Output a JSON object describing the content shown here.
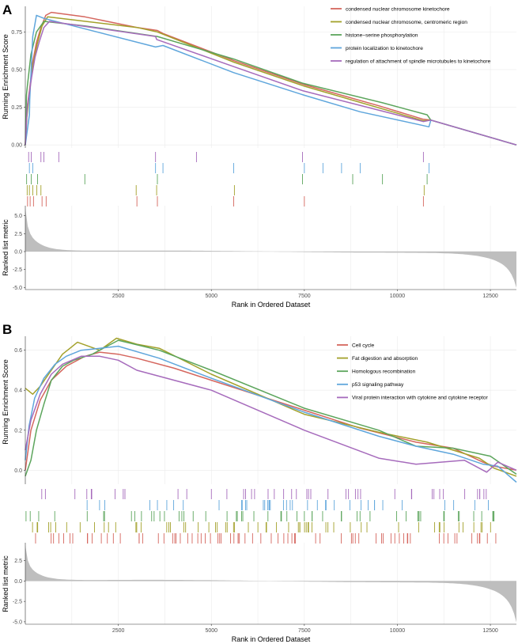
{
  "chart_data": [
    {
      "panel_label": "A",
      "type": "line",
      "ylabel": "Running Enrichment Score",
      "metric_ylabel": "Ranked list metric",
      "xlabel": "Rank in Ordered Dataset",
      "xlim": [
        0,
        13200
      ],
      "x_ticks": [
        2500,
        5000,
        7500,
        10000,
        12500
      ],
      "x_tick_labels": [
        "2500",
        "5000",
        "7500",
        "10000",
        "12500"
      ],
      "es_ylim": [
        -0.02,
        0.92
      ],
      "es_ticks": [
        0.0,
        0.25,
        0.5,
        0.75
      ],
      "es_tick_labels": [
        "0.00",
        "0.25",
        "0.50",
        "0.75"
      ],
      "metric_ylim": [
        -5.3,
        6.4
      ],
      "metric_ticks": [
        -5,
        -2.5,
        0,
        2.5,
        5
      ],
      "metric_tick_labels": [
        "-5.0",
        "-2.5",
        "0.0",
        "2.5",
        "5.0"
      ],
      "legend_position": "top-right",
      "grid": true,
      "series": [
        {
          "name": "condensed nuclear chromosome kinetochore",
          "color": "#d5665e",
          "points": [
            [
              0,
              0
            ],
            [
              30,
              0.17
            ],
            [
              60,
              0.27
            ],
            [
              110,
              0.36
            ],
            [
              200,
              0.55
            ],
            [
              300,
              0.68
            ],
            [
              420,
              0.78
            ],
            [
              550,
              0.86
            ],
            [
              700,
              0.88
            ],
            [
              1600,
              0.85
            ],
            [
              3000,
              0.78
            ],
            [
              3550,
              0.76
            ],
            [
              3700,
              0.74
            ],
            [
              5600,
              0.56
            ],
            [
              7500,
              0.4
            ],
            [
              9500,
              0.26
            ],
            [
              10700,
              0.17
            ],
            [
              10900,
              0.165
            ],
            [
              13200,
              0
            ]
          ],
          "hits": [
            60,
            130,
            220,
            450,
            560,
            3000,
            3550,
            5600,
            7500,
            10700
          ]
        },
        {
          "name": "condensed nuclear chromosome, centromeric region",
          "color": "#a3a12b",
          "points": [
            [
              0,
              0
            ],
            [
              40,
              0.18
            ],
            [
              90,
              0.3
            ],
            [
              180,
              0.5
            ],
            [
              320,
              0.67
            ],
            [
              450,
              0.79
            ],
            [
              600,
              0.85
            ],
            [
              3000,
              0.78
            ],
            [
              3550,
              0.75
            ],
            [
              5600,
              0.55
            ],
            [
              7500,
              0.39
            ],
            [
              10700,
              0.16
            ],
            [
              10900,
              0.165
            ],
            [
              13200,
              0
            ]
          ],
          "hits": [
            50,
            110,
            200,
            310,
            420,
            2980,
            3530,
            5620,
            10720
          ]
        },
        {
          "name": "histone−serine phosphorylation",
          "color": "#5ca55c",
          "points": [
            [
              0,
              0
            ],
            [
              30,
              0.33
            ],
            [
              60,
              0.4
            ],
            [
              150,
              0.6
            ],
            [
              300,
              0.75
            ],
            [
              500,
              0.82
            ],
            [
              1600,
              0.79
            ],
            [
              3550,
              0.72
            ],
            [
              5600,
              0.57
            ],
            [
              7450,
              0.41
            ],
            [
              9600,
              0.28
            ],
            [
              10800,
              0.2
            ],
            [
              10900,
              0.165
            ],
            [
              13200,
              0
            ]
          ],
          "hits": [
            35,
            160,
            330,
            1600,
            3550,
            7450,
            8800,
            9600,
            10800
          ]
        },
        {
          "name": "protein localization to kinetochore",
          "color": "#5fa6dc",
          "points": [
            [
              0,
              0
            ],
            [
              110,
              0.2
            ],
            [
              120,
              0.3
            ],
            [
              200,
              0.72
            ],
            [
              300,
              0.86
            ],
            [
              500,
              0.84
            ],
            [
              3500,
              0.65
            ],
            [
              3700,
              0.66
            ],
            [
              5600,
              0.48
            ],
            [
              7500,
              0.33
            ],
            [
              9000,
              0.22
            ],
            [
              10850,
              0.12
            ],
            [
              10900,
              0.165
            ],
            [
              13200,
              0
            ]
          ],
          "hits": [
            110,
            200,
            3500,
            3700,
            5600,
            7500,
            8000,
            8500,
            9000,
            10850
          ]
        },
        {
          "name": "regulation of attachment of spindle microtubules to kinetochore",
          "color": "#a66bbc",
          "points": [
            [
              0,
              0
            ],
            [
              50,
              0.25
            ],
            [
              100,
              0.33
            ],
            [
              170,
              0.45
            ],
            [
              260,
              0.58
            ],
            [
              370,
              0.68
            ],
            [
              500,
              0.78
            ],
            [
              650,
              0.82
            ],
            [
              3500,
              0.72
            ],
            [
              3530,
              0.7
            ],
            [
              5600,
              0.52
            ],
            [
              7450,
              0.36
            ],
            [
              10700,
              0.155
            ],
            [
              10900,
              0.165
            ],
            [
              13200,
              0
            ]
          ],
          "hits": [
            90,
            160,
            420,
            500,
            900,
            3500,
            4600,
            7450,
            10700
          ]
        }
      ]
    },
    {
      "panel_label": "B",
      "type": "line",
      "ylabel": "Running Enrichment Score",
      "metric_ylabel": "Ranked list metric",
      "xlabel": "Rank in Ordered Dataset",
      "xlim": [
        0,
        13200
      ],
      "x_ticks": [
        2500,
        5000,
        7500,
        10000,
        12500
      ],
      "x_tick_labels": [
        "2500",
        "5000",
        "7500",
        "10000",
        "12500"
      ],
      "es_ylim": [
        -0.07,
        0.67
      ],
      "es_ticks": [
        0.0,
        0.2,
        0.4,
        0.6
      ],
      "es_tick_labels": [
        "0.0",
        "0.2",
        "0.4",
        "0.6"
      ],
      "metric_ylim": [
        -5.3,
        4.7
      ],
      "metric_ticks": [
        -5,
        -2.5,
        0,
        2.5
      ],
      "metric_tick_labels": [
        "-5.0",
        "-2.5",
        "0.0",
        "2.5"
      ],
      "legend_position": "top-right",
      "grid": true,
      "series": [
        {
          "name": "Cell cycle",
          "color": "#d5665e",
          "points": [
            [
              0,
              0
            ],
            [
              150,
              0.2
            ],
            [
              400,
              0.35
            ],
            [
              700,
              0.45
            ],
            [
              1100,
              0.52
            ],
            [
              1600,
              0.57
            ],
            [
              2000,
              0.59
            ],
            [
              2500,
              0.58
            ],
            [
              3000,
              0.56
            ],
            [
              4000,
              0.51
            ],
            [
              5000,
              0.45
            ],
            [
              6000,
              0.39
            ],
            [
              7500,
              0.3
            ],
            [
              9000,
              0.21
            ],
            [
              10500,
              0.14
            ],
            [
              11500,
              0.11
            ],
            [
              12300,
              0.04
            ],
            [
              12600,
              0.02
            ],
            [
              13200,
              0.0
            ]
          ]
        },
        {
          "name": "Fat digestion and absorption",
          "color": "#a3a12b",
          "points": [
            [
              0,
              0.41
            ],
            [
              200,
              0.38
            ],
            [
              400,
              0.42
            ],
            [
              700,
              0.5
            ],
            [
              1000,
              0.58
            ],
            [
              1200,
              0.61
            ],
            [
              1400,
              0.64
            ],
            [
              2000,
              0.6
            ],
            [
              2450,
              0.66
            ],
            [
              3000,
              0.63
            ],
            [
              3600,
              0.61
            ],
            [
              5000,
              0.48
            ],
            [
              7500,
              0.28
            ],
            [
              9500,
              0.19
            ],
            [
              10800,
              0.14
            ],
            [
              12200,
              0.06
            ],
            [
              12600,
              0.01
            ],
            [
              13200,
              -0.03
            ]
          ]
        },
        {
          "name": "Homologous recombination",
          "color": "#5ca55c",
          "points": [
            [
              0,
              -0.03
            ],
            [
              150,
              0.05
            ],
            [
              300,
              0.2
            ],
            [
              500,
              0.33
            ],
            [
              700,
              0.45
            ],
            [
              1000,
              0.52
            ],
            [
              1300,
              0.55
            ],
            [
              1800,
              0.58
            ],
            [
              2200,
              0.62
            ],
            [
              2500,
              0.65
            ],
            [
              3600,
              0.6
            ],
            [
              5000,
              0.5
            ],
            [
              7500,
              0.31
            ],
            [
              9500,
              0.2
            ],
            [
              10500,
              0.12
            ],
            [
              11500,
              0.11
            ],
            [
              12500,
              0.07
            ],
            [
              13200,
              -0.02
            ]
          ]
        },
        {
          "name": "p53 signaling pathway",
          "color": "#5fa6dc",
          "points": [
            [
              0,
              0.05
            ],
            [
              100,
              0.22
            ],
            [
              250,
              0.36
            ],
            [
              500,
              0.46
            ],
            [
              800,
              0.53
            ],
            [
              1100,
              0.57
            ],
            [
              1500,
              0.6
            ],
            [
              2000,
              0.61
            ],
            [
              2500,
              0.62
            ],
            [
              3600,
              0.56
            ],
            [
              5000,
              0.46
            ],
            [
              7500,
              0.29
            ],
            [
              9500,
              0.17
            ],
            [
              10500,
              0.12
            ],
            [
              11500,
              0.08
            ],
            [
              12300,
              0.03
            ],
            [
              12700,
              0.02
            ],
            [
              13200,
              -0.06
            ]
          ]
        },
        {
          "name": "Viral protein interaction with cytokine and cytokine receptor",
          "color": "#a66bbc",
          "points": [
            [
              0,
              0.1
            ],
            [
              150,
              0.25
            ],
            [
              400,
              0.38
            ],
            [
              700,
              0.48
            ],
            [
              1000,
              0.53
            ],
            [
              1500,
              0.57
            ],
            [
              2000,
              0.57
            ],
            [
              2500,
              0.55
            ],
            [
              3000,
              0.5
            ],
            [
              5000,
              0.4
            ],
            [
              7500,
              0.2
            ],
            [
              9500,
              0.06
            ],
            [
              10500,
              0.03
            ],
            [
              11800,
              0.05
            ],
            [
              12400,
              -0.01
            ],
            [
              12700,
              0.04
            ],
            [
              13200,
              0.0
            ]
          ]
        }
      ]
    }
  ]
}
